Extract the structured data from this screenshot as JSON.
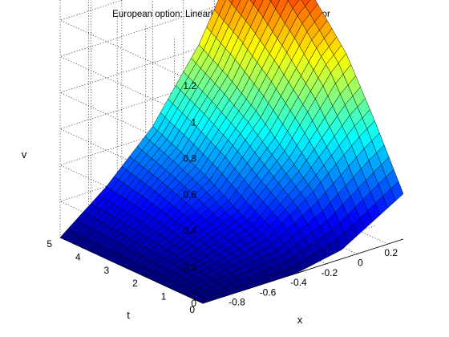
{
  "chart_data": {
    "type": "surface",
    "title": "European option: Linearly-Implicit Predictor-Corrector",
    "xlabel": "x",
    "ylabel": "t",
    "zlabel": "v",
    "colormap": "jet",
    "grid": true,
    "xlim": [
      -1,
      0.3
    ],
    "ylim": [
      0,
      5
    ],
    "zlim": [
      0,
      1.4
    ],
    "x_ticks": [
      "-0.8",
      "-0.6",
      "-0.4",
      "-0.2",
      "0",
      "0.2"
    ],
    "x_tick_values": [
      -0.8,
      -0.6,
      -0.4,
      -0.2,
      0,
      0.2
    ],
    "y_ticks": [
      "0",
      "1",
      "2",
      "3",
      "4",
      "5"
    ],
    "y_tick_values": [
      0,
      1,
      2,
      3,
      4,
      5
    ],
    "z_ticks": [
      "0",
      "0.2",
      "0.4",
      "0.6",
      "0.8",
      "1",
      "1.2"
    ],
    "z_tick_values": [
      0,
      0.2,
      0.4,
      0.6,
      0.8,
      1,
      1.2
    ],
    "x": [
      -1.0,
      -0.7,
      -0.4,
      -0.1,
      0.2,
      0.3
    ],
    "t": [
      0,
      1,
      2,
      3,
      4,
      5
    ],
    "v": [
      [
        0.0,
        0.0,
        0.0,
        0.05,
        0.2,
        0.25
      ],
      [
        0.0,
        0.05,
        0.12,
        0.3,
        0.52,
        0.58
      ],
      [
        0.0,
        0.09,
        0.2,
        0.45,
        0.8,
        0.88
      ],
      [
        0.0,
        0.13,
        0.3,
        0.6,
        1.0,
        1.08
      ],
      [
        0.0,
        0.17,
        0.38,
        0.72,
        1.18,
        1.26
      ],
      [
        0.0,
        0.2,
        0.45,
        0.82,
        1.32,
        1.38
      ]
    ]
  }
}
